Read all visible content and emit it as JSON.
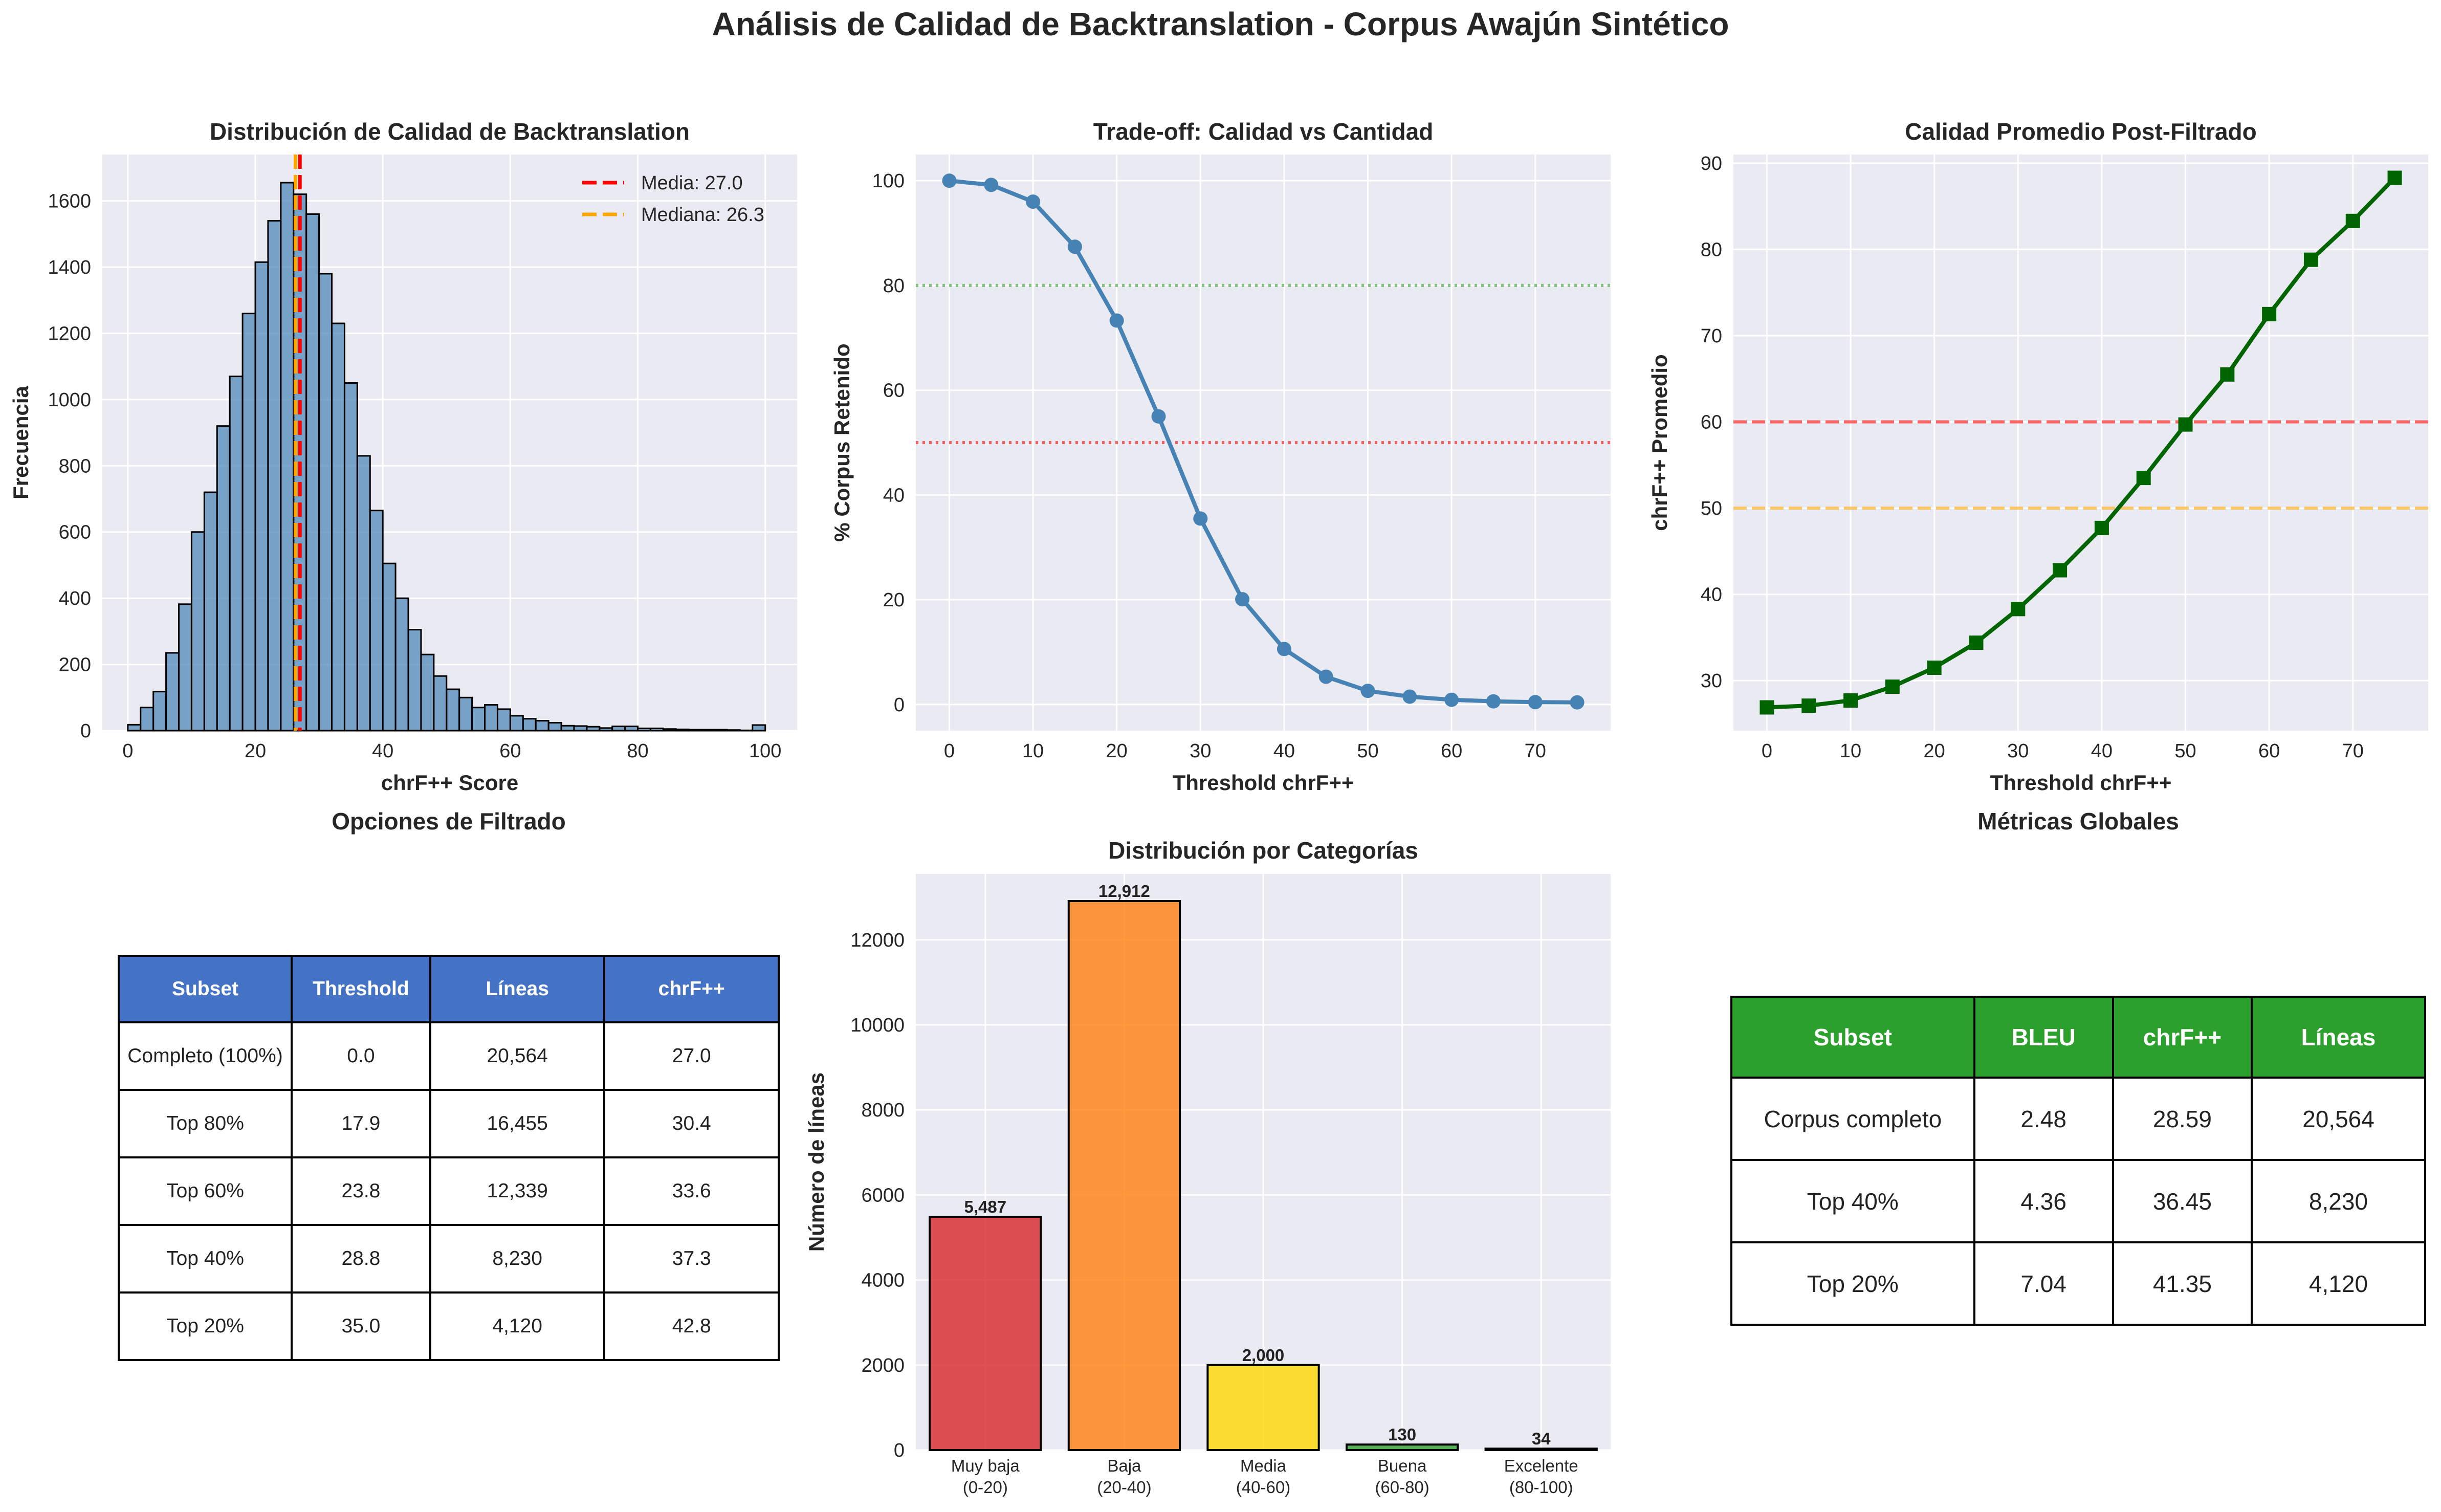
{
  "suptitle": "Análisis de Calidad de Backtranslation - Corpus Awajún Sintético",
  "chart_data": [
    {
      "type": "bar",
      "subtype": "histogram",
      "title": "Distribución de Calidad de Backtranslation",
      "xlabel": "chrF++ Score",
      "ylabel": "Frecuencia",
      "xlim": [
        -4,
        105
      ],
      "ylim": [
        0,
        1740
      ],
      "xticks": [
        0,
        20,
        40,
        60,
        80,
        100
      ],
      "yticks": [
        0,
        200,
        400,
        600,
        800,
        1000,
        1200,
        1400,
        1600
      ],
      "grid": true,
      "bin_edges_start": 0,
      "bin_width": 2,
      "values": [
        18,
        70,
        118,
        235,
        382,
        600,
        720,
        920,
        1070,
        1260,
        1415,
        1540,
        1655,
        1620,
        1560,
        1380,
        1230,
        1050,
        830,
        665,
        505,
        400,
        305,
        230,
        165,
        125,
        100,
        70,
        78,
        65,
        45,
        36,
        30,
        24,
        15,
        14,
        12,
        8,
        13,
        13,
        7,
        7,
        5,
        4,
        3,
        3,
        3,
        2,
        1,
        17
      ],
      "color": "#4682b4",
      "lines": [
        {
          "name": "Media: 27.0",
          "x": 27.0,
          "color": "#ff0000"
        },
        {
          "name": "Mediana: 26.3",
          "x": 26.3,
          "color": "#ffa500"
        }
      ],
      "legend": "top-right"
    },
    {
      "type": "line",
      "title": "Trade-off: Calidad vs Cantidad",
      "xlabel": "Threshold chrF++",
      "ylabel": "% Corpus Retenido",
      "xlim": [
        -4,
        79
      ],
      "ylim": [
        -5,
        105
      ],
      "xticks": [
        0,
        10,
        20,
        30,
        40,
        50,
        60,
        70
      ],
      "yticks": [
        0,
        20,
        40,
        60,
        80,
        100
      ],
      "grid": true,
      "x": [
        0,
        5,
        10,
        15,
        20,
        25,
        30,
        35,
        40,
        45,
        50,
        55,
        60,
        65,
        70,
        75
      ],
      "series": [
        {
          "values": [
            100,
            99.2,
            96,
            87.4,
            73.3,
            55,
            35.5,
            20.1,
            10.6,
            5.3,
            2.6,
            1.5,
            0.9,
            0.6,
            0.45,
            0.4
          ],
          "color": "#4682b4"
        }
      ],
      "hlines": [
        {
          "y": 80,
          "color": "#2ca02c"
        },
        {
          "y": 50,
          "color": "#ff0000"
        }
      ]
    },
    {
      "type": "line",
      "title": "Calidad Promedio Post-Filtrado",
      "xlabel": "Threshold chrF++",
      "ylabel": "chrF++ Promedio",
      "xlim": [
        -4,
        79
      ],
      "ylim": [
        24.2,
        91
      ],
      "xticks": [
        0,
        10,
        20,
        30,
        40,
        50,
        60,
        70
      ],
      "yticks": [
        30,
        40,
        50,
        60,
        70,
        80,
        90
      ],
      "grid": true,
      "x": [
        0,
        5,
        10,
        15,
        20,
        25,
        30,
        35,
        40,
        45,
        50,
        55,
        60,
        65,
        70,
        75
      ],
      "series": [
        {
          "values": [
            26.9,
            27.1,
            27.7,
            29.3,
            31.5,
            34.4,
            38.3,
            42.8,
            47.7,
            53.5,
            59.7,
            65.5,
            72.5,
            78.8,
            83.3,
            88.3
          ],
          "color": "#006400"
        }
      ],
      "hlines": [
        {
          "y": 60,
          "color": "#ff0000"
        },
        {
          "y": 50,
          "color": "#ffa500"
        }
      ]
    },
    {
      "type": "bar",
      "title": "Distribución por Categorías",
      "xlabel": "",
      "ylabel": "Número de líneas",
      "categories": [
        [
          "Muy baja",
          "(0-20)"
        ],
        [
          "Baja",
          "(20-40)"
        ],
        [
          "Media",
          "(40-60)"
        ],
        [
          "Buena",
          "(60-80)"
        ],
        [
          "Excelente",
          "(80-100)"
        ]
      ],
      "values": [
        5487,
        12912,
        2000,
        130,
        34
      ],
      "labels": [
        "5,487",
        "12,912",
        "2,000",
        "130",
        "34"
      ],
      "colors": [
        "#d62728",
        "#ff7f0e",
        "#ffd700",
        "#2ca02c",
        "#006400"
      ],
      "ylim": [
        0,
        13550
      ],
      "yticks": [
        0,
        2000,
        4000,
        6000,
        8000,
        10000,
        12000
      ],
      "grid": true
    }
  ],
  "filter_table": {
    "title": "Opciones de Filtrado",
    "headers": [
      "Subset",
      "Threshold",
      "Líneas",
      "chrF++"
    ],
    "rows": [
      [
        "Completo (100%)",
        "0.0",
        "20,564",
        "27.0"
      ],
      [
        "Top 80%",
        "17.9",
        "16,455",
        "30.4"
      ],
      [
        "Top 60%",
        "23.8",
        "12,339",
        "33.6"
      ],
      [
        "Top 40%",
        "28.8",
        "8,230",
        "37.3"
      ],
      [
        "Top 20%",
        "35.0",
        "4,120",
        "42.8"
      ]
    ],
    "header_color": "#4472c4"
  },
  "metrics_table": {
    "title": "Métricas Globales",
    "headers": [
      "Subset",
      "BLEU",
      "chrF++",
      "Líneas"
    ],
    "rows": [
      [
        "Corpus completo",
        "2.48",
        "28.59",
        "20,564"
      ],
      [
        "Top 40%",
        "4.36",
        "36.45",
        "8,230"
      ],
      [
        "Top 20%",
        "7.04",
        "41.35",
        "4,120"
      ]
    ],
    "header_color": "#2ca02c"
  }
}
